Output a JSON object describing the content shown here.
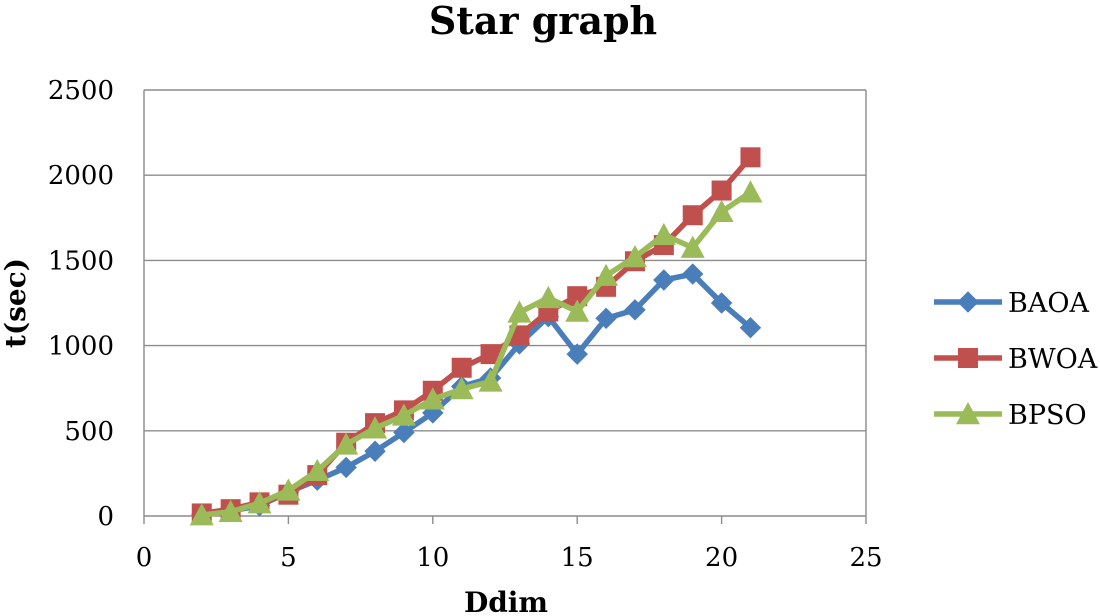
{
  "chart_data": {
    "type": "line",
    "title": "Star graph",
    "xlabel": "Ddim",
    "ylabel": "t(sec)",
    "xlim": [
      0,
      25
    ],
    "ylim": [
      0,
      2500
    ],
    "xticks": [
      0,
      5,
      10,
      15,
      20,
      25
    ],
    "yticks": [
      0,
      500,
      1000,
      1500,
      2000,
      2500
    ],
    "grid": "horizontal",
    "legend_position": "right",
    "series": [
      {
        "name": "BAOA",
        "color": "#4A7EBB",
        "marker": "diamond",
        "x": [
          2,
          3,
          4,
          5,
          6,
          7,
          8,
          9,
          10,
          11,
          12,
          13,
          14,
          15,
          16,
          17,
          18,
          19,
          20,
          21
        ],
        "y": [
          10,
          30,
          60,
          140,
          210,
          285,
          380,
          490,
          605,
          760,
          810,
          1010,
          1170,
          950,
          1160,
          1210,
          1385,
          1420,
          1250,
          1105
        ]
      },
      {
        "name": "BWOA",
        "color": "#C0504D",
        "marker": "square",
        "x": [
          2,
          3,
          4,
          5,
          6,
          7,
          8,
          9,
          10,
          11,
          12,
          13,
          14,
          15,
          16,
          17,
          18,
          19,
          20,
          21
        ],
        "y": [
          15,
          40,
          80,
          125,
          240,
          430,
          545,
          620,
          735,
          870,
          950,
          1060,
          1200,
          1290,
          1345,
          1495,
          1590,
          1765,
          1910,
          2105
        ]
      },
      {
        "name": "BPSO",
        "color": "#9BBB59",
        "marker": "triangle",
        "x": [
          2,
          3,
          4,
          5,
          6,
          7,
          8,
          9,
          10,
          11,
          12,
          13,
          14,
          15,
          16,
          17,
          18,
          19,
          20,
          21
        ],
        "y": [
          5,
          25,
          75,
          150,
          265,
          420,
          515,
          590,
          685,
          745,
          790,
          1195,
          1280,
          1200,
          1410,
          1520,
          1650,
          1575,
          1785,
          1900
        ]
      }
    ]
  }
}
